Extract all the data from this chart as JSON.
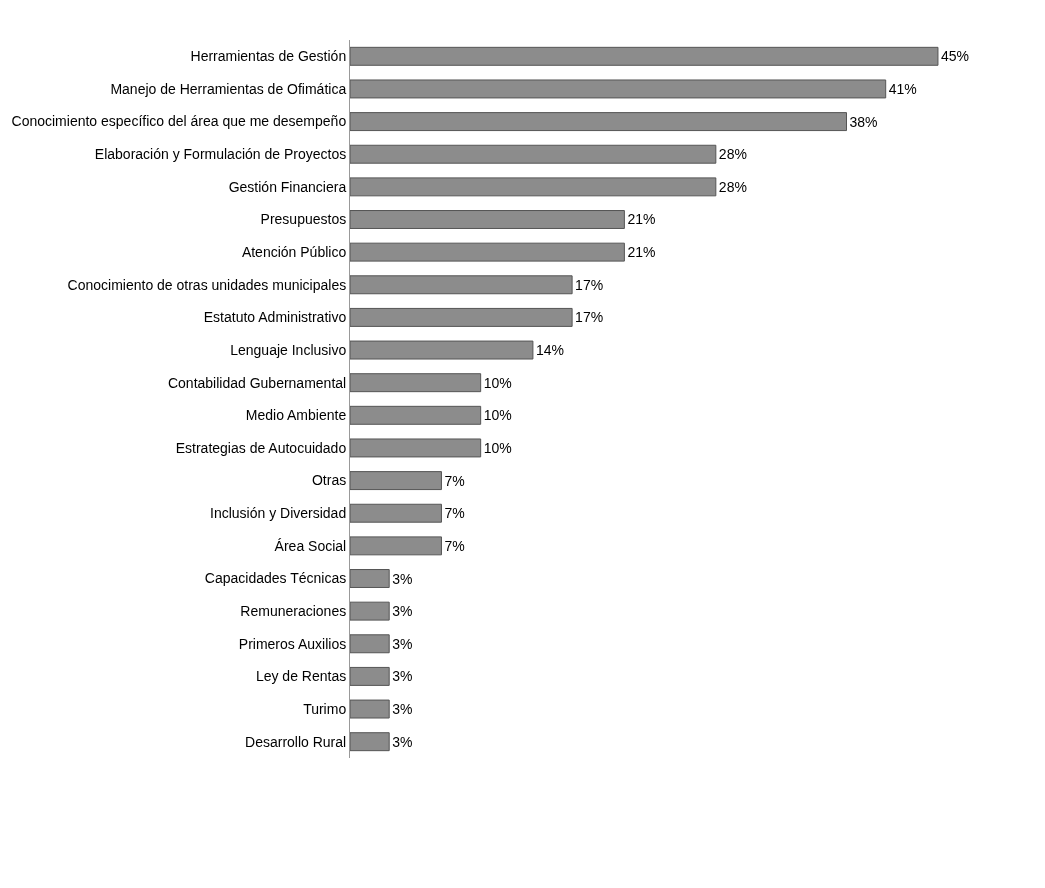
{
  "chart_data": {
    "type": "bar",
    "orientation": "horizontal",
    "categories": [
      "Herramientas de Gestión",
      "Manejo de Herramientas de Ofimática",
      "Conocimiento específico del área que me desempeño",
      "Elaboración y Formulación de Proyectos",
      "Gestión Financiera",
      "Presupuestos",
      "Atención Público",
      "Conocimiento de otras unidades municipales",
      "Estatuto Administrativo",
      "Lenguaje Inclusivo",
      "Contabilidad Gubernamental",
      "Medio Ambiente",
      "Estrategias de Autocuidado",
      "Otras",
      "Inclusión y Diversidad",
      "Área Social",
      "Capacidades Técnicas",
      "Remuneraciones",
      "Primeros Auxilios",
      "Ley de Rentas",
      "Turimo",
      "Desarrollo Rural"
    ],
    "values": [
      45,
      41,
      38,
      28,
      28,
      21,
      21,
      17,
      17,
      14,
      10,
      10,
      10,
      7,
      7,
      7,
      3,
      3,
      3,
      3,
      3,
      3
    ],
    "value_labels": [
      "45%",
      "41%",
      "38%",
      "28%",
      "28%",
      "21%",
      "21%",
      "17%",
      "17%",
      "14%",
      "10%",
      "10%",
      "10%",
      "7%",
      "7%",
      "7%",
      "3%",
      "3%",
      "3%",
      "3%",
      "3%",
      "3%"
    ],
    "color": "#8c8c8c",
    "legend": false,
    "tick_labels": "y"
  }
}
